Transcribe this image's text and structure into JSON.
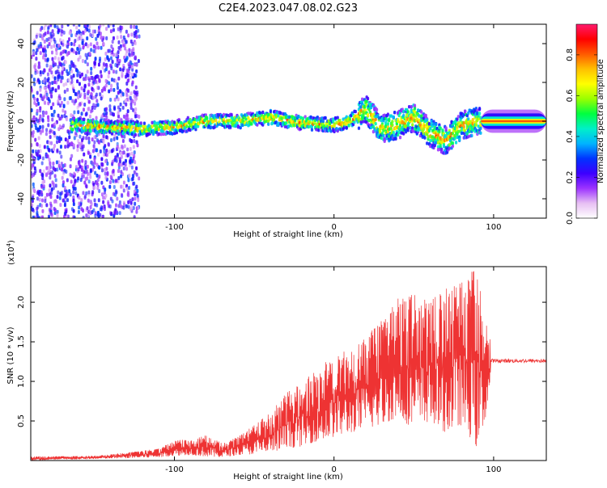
{
  "title": "C2E4.2023.047.08.02.G23",
  "chart_data": [
    {
      "type": "heatmap",
      "xlabel": "Height of straight line (km)",
      "ylabel": "Frequency (Hz)",
      "xlim": [
        -190,
        133
      ],
      "ylim": [
        -50,
        50
      ],
      "xticks": [
        -100,
        0,
        100
      ],
      "yticks": [
        -40,
        -20,
        0,
        20,
        40
      ],
      "trace": [
        {
          "x": -160,
          "y": -2
        },
        {
          "x": -140,
          "y": -3
        },
        {
          "x": -120,
          "y": -4
        },
        {
          "x": -100,
          "y": -3
        },
        {
          "x": -80,
          "y": 0
        },
        {
          "x": -60,
          "y": 0
        },
        {
          "x": -40,
          "y": 2
        },
        {
          "x": -20,
          "y": -1
        },
        {
          "x": 0,
          "y": -2
        },
        {
          "x": 10,
          "y": 0
        },
        {
          "x": 20,
          "y": 6
        },
        {
          "x": 30,
          "y": -4
        },
        {
          "x": 40,
          "y": -2
        },
        {
          "x": 50,
          "y": 2
        },
        {
          "x": 60,
          "y": -6
        },
        {
          "x": 70,
          "y": -10
        },
        {
          "x": 80,
          "y": -2
        },
        {
          "x": 92,
          "y": 0
        },
        {
          "x": 133,
          "y": 0
        }
      ],
      "colorbar": {
        "label": "Normalized spectral amplitude",
        "range": [
          0,
          0.95
        ],
        "ticks": [
          0.0,
          0.2,
          0.4,
          0.6,
          0.8
        ],
        "tick_labels": [
          "0.0",
          "0.2",
          "0.4",
          "0.6",
          "0.8"
        ],
        "colors": [
          "#ffffff",
          "#e7bff3",
          "#9c33ff",
          "#3c00ff",
          "#0033ff",
          "#00b4ff",
          "#00f0c8",
          "#00ff40",
          "#9aff00",
          "#ffff00",
          "#ffc000",
          "#ff5a00",
          "#ff0000",
          "#ff1a6e"
        ]
      }
    },
    {
      "type": "line",
      "xlabel": "Height of straight line (km)",
      "ylabel": "SNR (10 * v/v)",
      "y_multiplier": "(x10",
      "y_multiplier_exp": "4",
      "y_multiplier_close": ")",
      "xlim": [
        -190,
        133
      ],
      "ylim": [
        0,
        2.45
      ],
      "xticks": [
        -100,
        0,
        100
      ],
      "yticks": [
        0.5,
        1.0,
        1.5,
        2.0
      ],
      "ytick_labels": [
        "0.5",
        "1.0",
        "1.5",
        "2.0"
      ],
      "color": "#ee3333",
      "envelope": {
        "x": [
          -190,
          -150,
          -130,
          -110,
          -100,
          -90,
          -80,
          -70,
          -60,
          -50,
          -40,
          -30,
          -20,
          -10,
          0,
          10,
          20,
          30,
          40,
          50,
          60,
          70,
          80,
          90,
          95,
          100,
          133
        ],
        "upper": [
          0.05,
          0.06,
          0.1,
          0.15,
          0.25,
          0.28,
          0.32,
          0.22,
          0.3,
          0.45,
          0.6,
          0.85,
          1.0,
          1.15,
          1.35,
          1.4,
          1.55,
          1.8,
          2.05,
          2.1,
          2.0,
          2.2,
          2.3,
          2.45,
          1.85,
          1.3,
          1.3
        ],
        "lower": [
          0.0,
          0.02,
          0.03,
          0.04,
          0.06,
          0.07,
          0.05,
          0.04,
          0.07,
          0.08,
          0.1,
          0.15,
          0.18,
          0.25,
          0.3,
          0.35,
          0.4,
          0.45,
          0.55,
          0.4,
          0.5,
          0.35,
          0.45,
          0.15,
          0.55,
          1.22,
          1.22
        ]
      }
    }
  ]
}
